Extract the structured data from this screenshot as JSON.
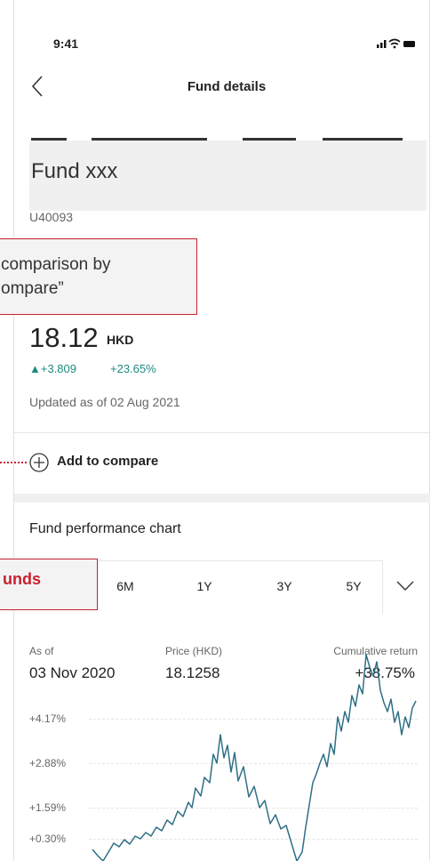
{
  "status_bar": {
    "time": "9:41"
  },
  "header": {
    "title": "Fund details"
  },
  "fund": {
    "name": "Fund xxx",
    "code": "U40093",
    "price": "18.12",
    "currency": "HKD",
    "change": "▲+3.809",
    "change_pct": "+23.65%",
    "updated": "Updated as of 02 Aug 2021"
  },
  "actions": {
    "add_to_compare": "Add to compare"
  },
  "performance": {
    "title": "Fund performance chart",
    "tabs": [
      "6M",
      "1Y",
      "3Y",
      "5Y"
    ],
    "columns": [
      {
        "label": "As of",
        "value": "03 Nov 2020"
      },
      {
        "label": "Price (HKD)",
        "value": "18.1258"
      },
      {
        "label": "Cumulative return",
        "value": "+38.75%"
      }
    ],
    "y_labels": [
      "+4.17%",
      "+2.88%",
      "+1.59%",
      "+0.30%"
    ]
  },
  "callouts": [
    {
      "lines": [
        "comparison by",
        "ompare”"
      ]
    },
    {
      "lines": [
        "unds"
      ]
    }
  ]
}
